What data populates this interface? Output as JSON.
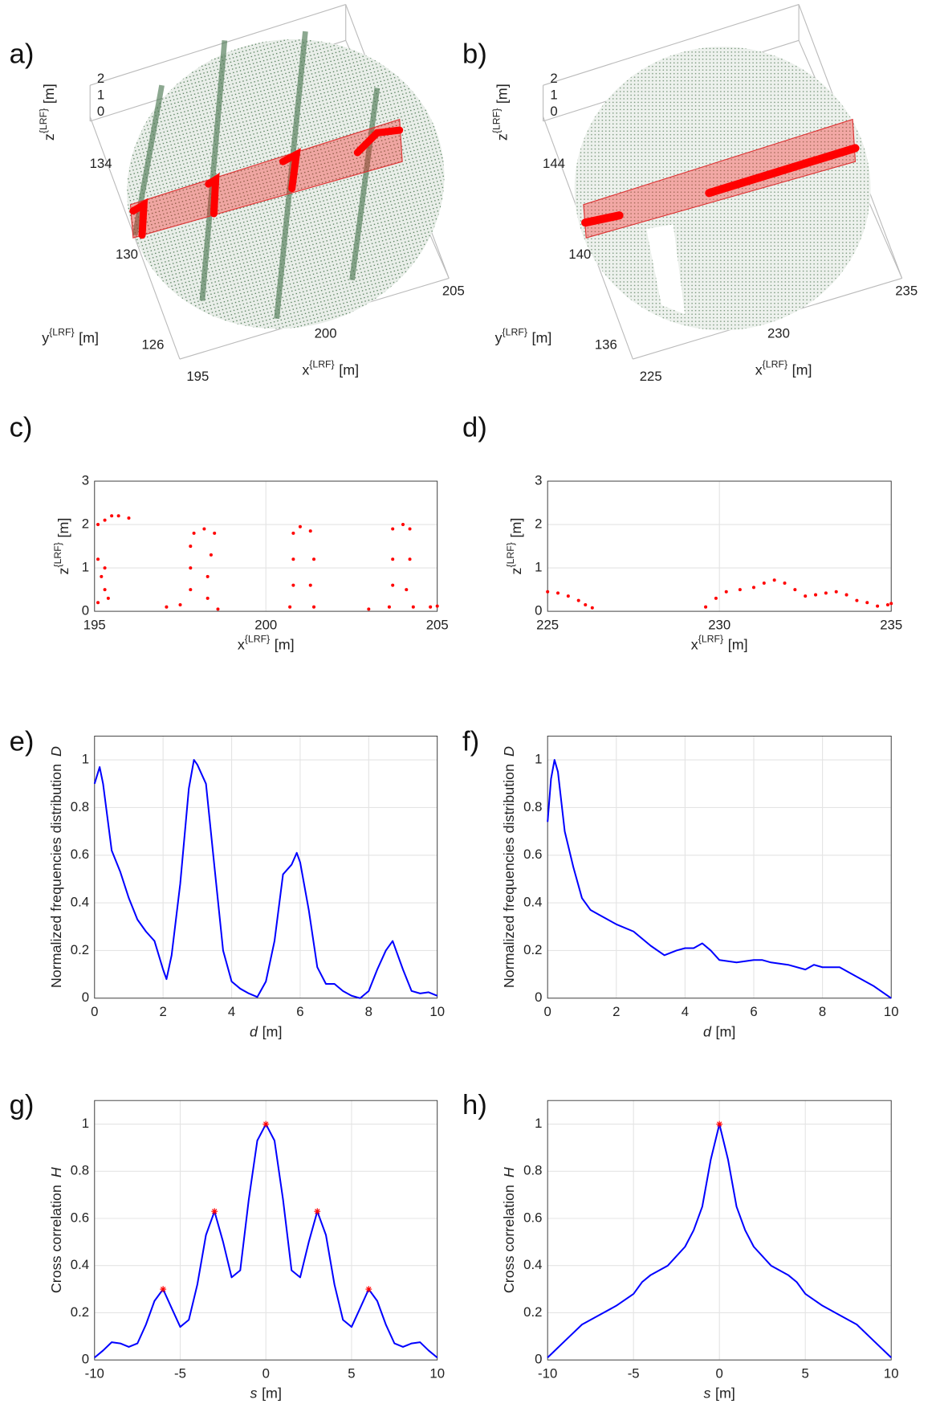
{
  "chart_data": [
    {
      "type": "point-cloud",
      "label": "a)",
      "xlabel": {
        "symbol": "x",
        "superscript": "{LRF}",
        "unit": "[m]"
      },
      "ylabel": {
        "symbol": "y",
        "superscript": "{LRF}",
        "unit": "[m]"
      },
      "zlabel": {
        "symbol": "z",
        "superscript": "{LRF}",
        "unit": "[m]"
      },
      "xticks": [
        195,
        200,
        205
      ],
      "yticks": [
        126,
        130,
        134
      ],
      "zticks": [
        0,
        1,
        2
      ],
      "cloud_color": "#4f7a55",
      "highlight_color": "#ff0000"
    },
    {
      "type": "point-cloud",
      "label": "b)",
      "xlabel": {
        "symbol": "x",
        "superscript": "{LRF}",
        "unit": "[m]"
      },
      "ylabel": {
        "symbol": "y",
        "superscript": "{LRF}",
        "unit": "[m]"
      },
      "zlabel": {
        "symbol": "z",
        "superscript": "{LRF}",
        "unit": "[m]"
      },
      "xticks": [
        225,
        230,
        235
      ],
      "yticks": [
        136,
        140,
        144
      ],
      "zticks": [
        0,
        1,
        2
      ],
      "cloud_color": "#6f8f72",
      "highlight_color": "#ff0000"
    },
    {
      "type": "scatter",
      "label": "c)",
      "xlabel": {
        "symbol": "x",
        "superscript": "{LRF}",
        "unit": "[m]"
      },
      "ylabel": {
        "symbol": "z",
        "superscript": "{LRF}",
        "unit": "[m]"
      },
      "xlim": [
        195,
        205
      ],
      "ylim": [
        0,
        3
      ],
      "xticks": [
        195,
        200,
        205
      ],
      "yticks": [
        0,
        1,
        2,
        3
      ],
      "grid": true,
      "series": [
        {
          "color": "#ff0000",
          "x": [
            195.1,
            195.3,
            195.5,
            195.7,
            196.0,
            195.1,
            195.2,
            195.3,
            195.1,
            195.3,
            195.4,
            197.1,
            197.5,
            197.8,
            197.8,
            197.8,
            197.9,
            198.2,
            198.5,
            198.4,
            198.3,
            198.3,
            198.6,
            200.7,
            200.8,
            200.8,
            200.8,
            201.0,
            201.3,
            201.4,
            201.3,
            201.4,
            203.0,
            203.6,
            203.7,
            203.7,
            203.7,
            204.0,
            204.2,
            204.2,
            204.1,
            204.3,
            204.8,
            205.0
          ],
          "values": [
            2.0,
            2.1,
            2.2,
            2.2,
            2.15,
            1.2,
            0.8,
            0.5,
            0.2,
            1.0,
            0.3,
            0.1,
            0.15,
            0.5,
            1.0,
            1.5,
            1.8,
            1.9,
            1.8,
            1.3,
            0.8,
            0.3,
            0.05,
            0.1,
            0.6,
            1.2,
            1.8,
            1.95,
            1.85,
            1.2,
            0.6,
            0.1,
            0.05,
            0.1,
            0.6,
            1.2,
            1.9,
            2.0,
            1.9,
            1.2,
            0.5,
            0.1,
            0.1,
            0.12
          ]
        }
      ]
    },
    {
      "type": "scatter",
      "label": "d)",
      "xlabel": {
        "symbol": "x",
        "superscript": "{LRF}",
        "unit": "[m]"
      },
      "ylabel": {
        "symbol": "z",
        "superscript": "{LRF}",
        "unit": "[m]"
      },
      "xlim": [
        225,
        235
      ],
      "ylim": [
        0,
        3
      ],
      "xticks": [
        225,
        230,
        235
      ],
      "yticks": [
        0,
        1,
        2,
        3
      ],
      "grid": true,
      "series": [
        {
          "color": "#ff0000",
          "x": [
            225.0,
            225.3,
            225.6,
            225.9,
            226.1,
            226.3,
            229.6,
            229.9,
            230.2,
            230.6,
            231.0,
            231.3,
            231.6,
            231.9,
            232.2,
            232.5,
            232.8,
            233.1,
            233.4,
            233.7,
            234.0,
            234.3,
            234.6,
            234.9,
            235.0
          ],
          "values": [
            0.45,
            0.42,
            0.35,
            0.25,
            0.15,
            0.08,
            0.1,
            0.3,
            0.45,
            0.5,
            0.55,
            0.65,
            0.72,
            0.65,
            0.5,
            0.35,
            0.38,
            0.42,
            0.45,
            0.38,
            0.25,
            0.2,
            0.12,
            0.15,
            0.18
          ]
        }
      ]
    },
    {
      "type": "line",
      "label": "e)",
      "xlabel": {
        "symbol": "d",
        "unit": "[m]"
      },
      "ylabel": {
        "text": "Normalized frequencies distribution",
        "symbol": "D"
      },
      "xlim": [
        0,
        10
      ],
      "ylim": [
        0,
        1.1
      ],
      "xticks": [
        0,
        2,
        4,
        6,
        8,
        10
      ],
      "yticks": [
        0,
        0.2,
        0.4,
        0.6,
        0.8,
        1
      ],
      "grid": true,
      "series": [
        {
          "color": "#0000ff",
          "x": [
            0,
            0.15,
            0.25,
            0.5,
            0.75,
            1.0,
            1.25,
            1.5,
            1.75,
            2.0,
            2.1,
            2.25,
            2.5,
            2.75,
            2.9,
            3.0,
            3.25,
            3.5,
            3.75,
            4.0,
            4.25,
            4.5,
            4.75,
            5.0,
            5.25,
            5.5,
            5.75,
            5.9,
            6.0,
            6.25,
            6.5,
            6.75,
            7.0,
            7.25,
            7.5,
            7.75,
            8.0,
            8.25,
            8.5,
            8.7,
            9.0,
            9.25,
            9.5,
            9.75,
            10
          ],
          "values": [
            0.9,
            0.97,
            0.9,
            0.62,
            0.53,
            0.42,
            0.33,
            0.28,
            0.24,
            0.12,
            0.08,
            0.18,
            0.48,
            0.88,
            1.0,
            0.98,
            0.9,
            0.55,
            0.2,
            0.07,
            0.04,
            0.02,
            0.005,
            0.07,
            0.24,
            0.52,
            0.56,
            0.61,
            0.57,
            0.37,
            0.13,
            0.06,
            0.06,
            0.03,
            0.01,
            0.0,
            0.03,
            0.12,
            0.2,
            0.24,
            0.12,
            0.03,
            0.02,
            0.025,
            0.01
          ]
        }
      ]
    },
    {
      "type": "line",
      "label": "f)",
      "xlabel": {
        "symbol": "d",
        "unit": "[m]"
      },
      "ylabel": {
        "text": "Normalized frequencies distribution",
        "symbol": "D"
      },
      "xlim": [
        0,
        10
      ],
      "ylim": [
        0,
        1.1
      ],
      "xticks": [
        0,
        2,
        4,
        6,
        8,
        10
      ],
      "yticks": [
        0,
        0.2,
        0.4,
        0.6,
        0.8,
        1
      ],
      "grid": true,
      "series": [
        {
          "color": "#0000ff",
          "x": [
            0,
            0.1,
            0.2,
            0.3,
            0.5,
            0.75,
            1.0,
            1.25,
            1.5,
            2.0,
            2.5,
            3.0,
            3.4,
            3.75,
            4.0,
            4.25,
            4.5,
            4.75,
            5.0,
            5.5,
            6.0,
            6.25,
            6.5,
            7.0,
            7.5,
            7.75,
            8.0,
            8.5,
            9.0,
            9.5,
            10
          ],
          "values": [
            0.74,
            0.92,
            1.0,
            0.95,
            0.7,
            0.55,
            0.42,
            0.37,
            0.35,
            0.31,
            0.28,
            0.22,
            0.18,
            0.2,
            0.21,
            0.21,
            0.23,
            0.2,
            0.16,
            0.15,
            0.16,
            0.16,
            0.15,
            0.14,
            0.12,
            0.14,
            0.13,
            0.13,
            0.09,
            0.05,
            0.0
          ]
        }
      ]
    },
    {
      "type": "line",
      "label": "g)",
      "xlabel": {
        "symbol": "s",
        "unit": "[m]"
      },
      "ylabel": {
        "text": "Cross correlation",
        "symbol": "H"
      },
      "xlim": [
        -10,
        10
      ],
      "ylim": [
        0,
        1.1
      ],
      "xticks": [
        -10,
        -5,
        0,
        5,
        10
      ],
      "yticks": [
        0,
        0.2,
        0.4,
        0.6,
        0.8,
        1
      ],
      "grid": true,
      "series": [
        {
          "color": "#0000ff",
          "x": [
            -10,
            -9.5,
            -9,
            -8.5,
            -8,
            -7.5,
            -7,
            -6.5,
            -6,
            -5.5,
            -5,
            -4.5,
            -4,
            -3.5,
            -3,
            -2.5,
            -2,
            -1.5,
            -1,
            -0.5,
            0,
            0.5,
            1,
            1.5,
            2,
            2.5,
            3,
            3.5,
            4,
            4.5,
            5,
            5.5,
            6,
            6.5,
            7,
            7.5,
            8,
            8.5,
            9,
            9.5,
            10
          ],
          "values": [
            0.01,
            0.04,
            0.075,
            0.07,
            0.055,
            0.07,
            0.15,
            0.25,
            0.3,
            0.22,
            0.14,
            0.17,
            0.32,
            0.53,
            0.63,
            0.5,
            0.35,
            0.38,
            0.68,
            0.93,
            1.0,
            0.93,
            0.68,
            0.38,
            0.35,
            0.5,
            0.63,
            0.53,
            0.32,
            0.17,
            0.14,
            0.22,
            0.3,
            0.25,
            0.15,
            0.07,
            0.055,
            0.07,
            0.075,
            0.04,
            0.01
          ]
        },
        {
          "color": "#ff0000",
          "marker": "*",
          "x": [
            -6,
            -3,
            0,
            3,
            6
          ],
          "values": [
            0.3,
            0.63,
            1.0,
            0.63,
            0.3
          ]
        }
      ]
    },
    {
      "type": "line",
      "label": "h)",
      "xlabel": {
        "symbol": "s",
        "unit": "[m]"
      },
      "ylabel": {
        "text": "Cross correlation",
        "symbol": "H"
      },
      "xlim": [
        -10,
        10
      ],
      "ylim": [
        0,
        1.1
      ],
      "xticks": [
        -10,
        -5,
        0,
        5,
        10
      ],
      "yticks": [
        0,
        0.2,
        0.4,
        0.6,
        0.8,
        1
      ],
      "grid": true,
      "series": [
        {
          "color": "#0000ff",
          "x": [
            -10,
            -9,
            -8,
            -7,
            -6,
            -5,
            -4.5,
            -4,
            -3,
            -2,
            -1.5,
            -1,
            -0.5,
            0,
            0.5,
            1,
            1.5,
            2,
            3,
            4,
            4.5,
            5,
            6,
            7,
            8,
            9,
            10
          ],
          "values": [
            0.01,
            0.08,
            0.15,
            0.19,
            0.23,
            0.28,
            0.33,
            0.36,
            0.4,
            0.48,
            0.55,
            0.65,
            0.85,
            1.0,
            0.85,
            0.65,
            0.55,
            0.48,
            0.4,
            0.36,
            0.33,
            0.28,
            0.23,
            0.19,
            0.15,
            0.08,
            0.01
          ]
        },
        {
          "color": "#ff0000",
          "marker": "*",
          "x": [
            0
          ],
          "values": [
            1.0
          ]
        }
      ]
    }
  ]
}
